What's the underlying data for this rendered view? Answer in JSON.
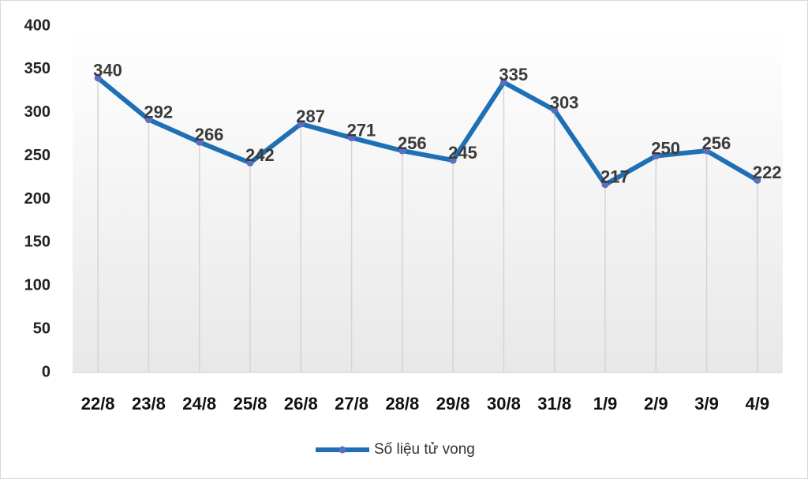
{
  "chart_data": {
    "type": "line",
    "categories": [
      "22/8",
      "23/8",
      "24/8",
      "25/8",
      "26/8",
      "27/8",
      "28/8",
      "29/8",
      "30/8",
      "31/8",
      "1/9",
      "2/9",
      "3/9",
      "4/9"
    ],
    "series": [
      {
        "name": "Số liệu tử vong",
        "color": "#1f6fb5",
        "marker_color": "#5b6ec2",
        "values": [
          340,
          292,
          266,
          242,
          287,
          271,
          256,
          245,
          335,
          303,
          217,
          250,
          256,
          222
        ]
      }
    ],
    "ylim": [
      0,
      400
    ],
    "yticks": [
      0,
      50,
      100,
      150,
      200,
      250,
      300,
      350,
      400
    ],
    "drop_lines": true,
    "data_labels": true,
    "legend": "bottom"
  }
}
